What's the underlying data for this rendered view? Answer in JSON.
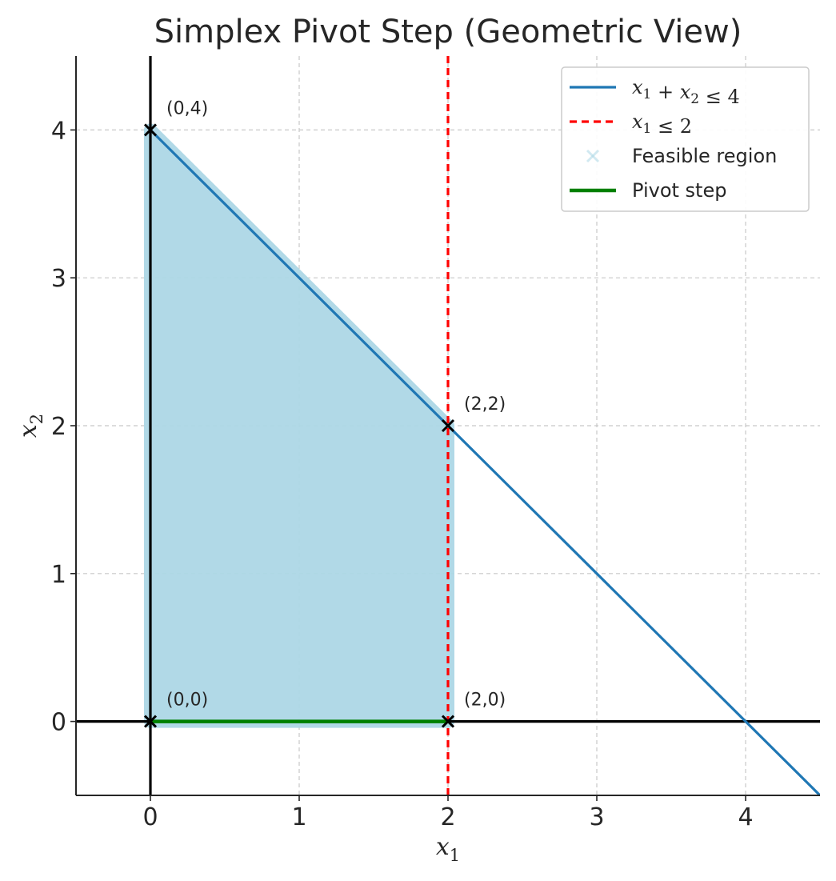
{
  "chart_data": {
    "type": "line",
    "title": "Simplex Pivot Step (Geometric View)",
    "xlabel": "x1",
    "ylabel": "x2",
    "xlim": [
      -0.5,
      4.5
    ],
    "ylim": [
      -0.5,
      4.5
    ],
    "xticks": [
      0,
      1,
      2,
      3,
      4
    ],
    "yticks": [
      0,
      1,
      2,
      3,
      4
    ],
    "grid": true,
    "legend_position": "top-right",
    "series": [
      {
        "name": "x1 + x2 ≤ 4",
        "kind": "line",
        "style": "solid",
        "color": "#1f77b4",
        "points": [
          [
            0,
            4
          ],
          [
            4.5,
            -0.5
          ]
        ]
      },
      {
        "name": "x1 ≤ 2",
        "kind": "line",
        "style": "dashed",
        "color": "#ff0000",
        "points": [
          [
            2,
            -0.5
          ],
          [
            2,
            4.5
          ]
        ]
      },
      {
        "name": "Feasible region",
        "kind": "region",
        "color": "#add8e6",
        "polygon": [
          [
            0,
            0
          ],
          [
            2,
            0
          ],
          [
            2,
            2
          ],
          [
            0,
            4
          ]
        ]
      },
      {
        "name": "Pivot step",
        "kind": "line",
        "style": "solid",
        "color": "#008000",
        "points": [
          [
            0,
            0
          ],
          [
            2,
            0
          ]
        ]
      }
    ],
    "axes_lines": [
      {
        "orientation": "horizontal",
        "value": 0,
        "color": "#000000"
      },
      {
        "orientation": "vertical",
        "value": 0,
        "color": "#000000"
      }
    ],
    "vertices": [
      {
        "x": 0,
        "y": 0,
        "label": "(0,0)"
      },
      {
        "x": 2,
        "y": 0,
        "label": "(2,0)"
      },
      {
        "x": 2,
        "y": 2,
        "label": "(2,2)"
      },
      {
        "x": 0,
        "y": 4,
        "label": "(0,4)"
      }
    ]
  }
}
